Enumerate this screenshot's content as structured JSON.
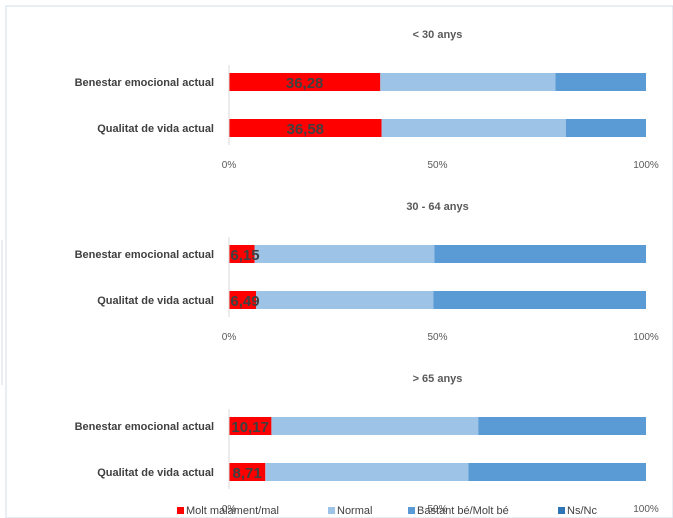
{
  "chart_data": [
    {
      "type": "bar",
      "orientation": "horizontal",
      "stacked": "percent",
      "title": "< 30 anys",
      "categories": [
        "Benestar emocional actual",
        "Qualitat de vida actual"
      ],
      "series": [
        {
          "name": "Molt malament/mal",
          "values": [
            36.28,
            36.58
          ],
          "labels": [
            "36,28",
            "36,58"
          ]
        },
        {
          "name": "Normal",
          "values": [
            42.0,
            44.2
          ]
        },
        {
          "name": "Bastant bé/Molt bé",
          "values": [
            21.72,
            19.22
          ]
        },
        {
          "name": "Ns/Nc",
          "values": [
            0,
            0
          ]
        }
      ],
      "xticks": [
        "0%",
        "50%",
        "100%"
      ],
      "xlim": [
        0,
        100
      ]
    },
    {
      "type": "bar",
      "orientation": "horizontal",
      "stacked": "percent",
      "title": "30 - 64 anys",
      "categories": [
        "Benestar emocional actual",
        "Qualitat de vida actual"
      ],
      "series": [
        {
          "name": "Molt malament/mal",
          "values": [
            6.15,
            6.49
          ],
          "labels": [
            "6,15",
            "6,49"
          ]
        },
        {
          "name": "Normal",
          "values": [
            43.1,
            42.5
          ]
        },
        {
          "name": "Bastant bé/Molt bé",
          "values": [
            50.75,
            51.01
          ]
        },
        {
          "name": "Ns/Nc",
          "values": [
            0,
            0
          ]
        }
      ],
      "xticks": [
        "0%",
        "50%",
        "100%"
      ],
      "xlim": [
        0,
        100
      ]
    },
    {
      "type": "bar",
      "orientation": "horizontal",
      "stacked": "percent",
      "title": "> 65 anys",
      "categories": [
        "Benestar emocional actual",
        "Qualitat de vida actual"
      ],
      "series": [
        {
          "name": "Molt malament/mal",
          "values": [
            10.17,
            8.71
          ],
          "labels": [
            "10,17",
            "8,71"
          ]
        },
        {
          "name": "Normal",
          "values": [
            49.6,
            48.7
          ]
        },
        {
          "name": "Bastant bé/Molt bé",
          "values": [
            40.23,
            42.59
          ]
        },
        {
          "name": "Ns/Nc",
          "values": [
            0,
            0
          ]
        }
      ],
      "xticks": [
        "0%",
        "50%",
        "100%"
      ],
      "xlim": [
        0,
        100
      ]
    }
  ],
  "legend": {
    "items": [
      {
        "name": "Molt malament/mal",
        "color": "#ff0000"
      },
      {
        "name": "Normal",
        "color": "#9dc3e6"
      },
      {
        "name": "Bastant bé/Molt bé",
        "color": "#5b9bd5"
      },
      {
        "name": "Ns/Nc",
        "color": "#2e75b6"
      }
    ],
    "position": "bottom"
  },
  "colors": {
    "series": [
      "#ff0000",
      "#9dc3e6",
      "#5b9bd5",
      "#2e75b6"
    ],
    "frame_border": "#d0dcea",
    "gridline": "#d9d9d9"
  }
}
